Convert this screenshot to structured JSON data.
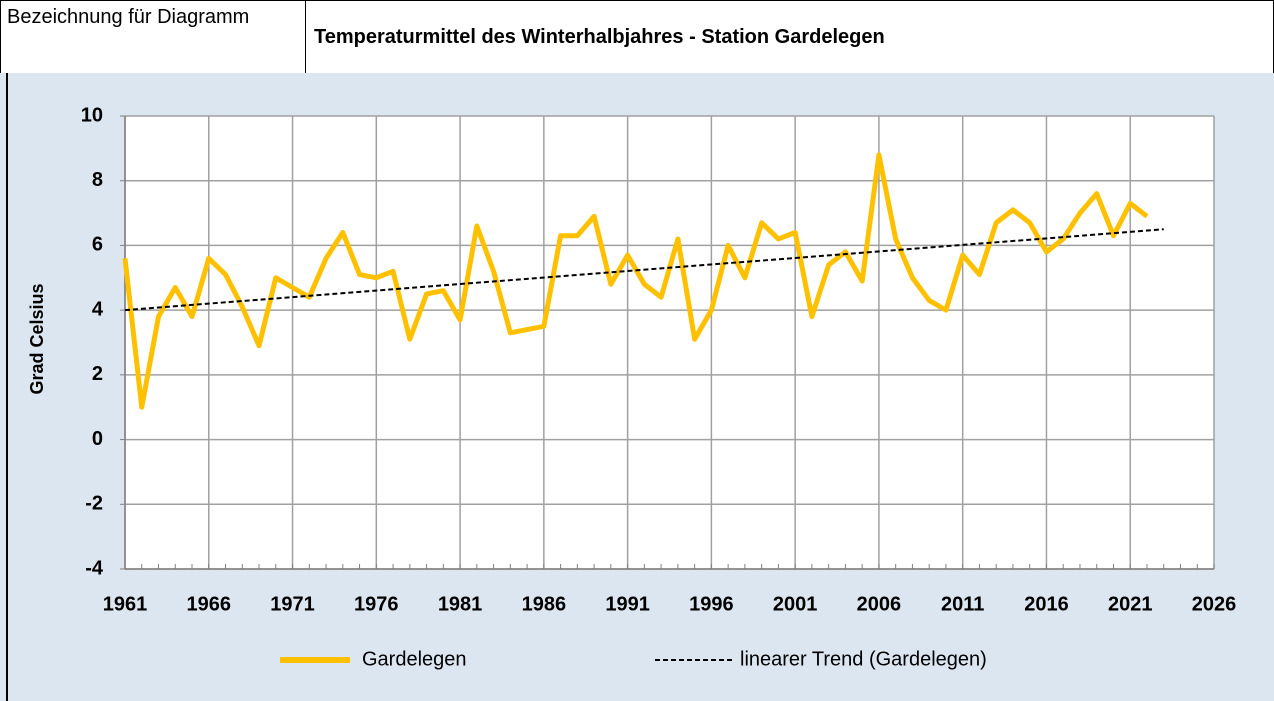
{
  "header": {
    "label": "Bezeichnung für Diagramm"
  },
  "chart_data": {
    "type": "line",
    "title": "Temperaturmittel des Winterhalbjahres - Station Gardelegen",
    "ylabel": "Grad Celsius",
    "x": [
      1961,
      1962,
      1963,
      1964,
      1965,
      1966,
      1967,
      1968,
      1969,
      1970,
      1971,
      1972,
      1973,
      1974,
      1975,
      1976,
      1977,
      1978,
      1979,
      1980,
      1981,
      1982,
      1983,
      1984,
      1985,
      1986,
      1987,
      1988,
      1989,
      1990,
      1991,
      1992,
      1993,
      1994,
      1995,
      1996,
      1997,
      1998,
      1999,
      2000,
      2001,
      2002,
      2003,
      2004,
      2005,
      2006,
      2007,
      2008,
      2009,
      2010,
      2011,
      2012,
      2013,
      2014,
      2015,
      2016,
      2017,
      2018,
      2019,
      2020,
      2021,
      2022
    ],
    "series": [
      {
        "name": "Gardelegen",
        "color": "#ffc000",
        "values": [
          5.6,
          1.0,
          3.8,
          4.7,
          3.8,
          5.6,
          5.1,
          4.1,
          2.9,
          5.0,
          4.7,
          4.4,
          5.6,
          6.4,
          5.1,
          5.0,
          5.2,
          3.1,
          4.5,
          4.6,
          3.7,
          6.6,
          5.2,
          3.3,
          3.4,
          3.5,
          6.3,
          6.3,
          6.9,
          4.8,
          5.7,
          4.8,
          4.4,
          6.2,
          3.1,
          4.0,
          6.0,
          5.0,
          6.7,
          6.2,
          6.4,
          3.8,
          5.4,
          5.8,
          4.9,
          8.8,
          6.2,
          5.0,
          4.3,
          4.0,
          5.7,
          5.1,
          6.7,
          7.1,
          6.7,
          5.8,
          6.2,
          7.0,
          7.6,
          6.3,
          7.3,
          6.9
        ]
      }
    ],
    "trend": {
      "name": "linearer Trend (Gardelegen)",
      "color": "#000000",
      "x": [
        1961,
        2023
      ],
      "values": [
        4.0,
        6.5
      ]
    },
    "xlim": [
      1961,
      2026
    ],
    "xticks": [
      1961,
      1966,
      1971,
      1976,
      1981,
      1986,
      1991,
      1996,
      2001,
      2006,
      2011,
      2016,
      2021,
      2026
    ],
    "ylim": [
      -4,
      10
    ],
    "yticks": [
      -4,
      -2,
      0,
      2,
      4,
      6,
      8,
      10
    ],
    "grid": true
  }
}
